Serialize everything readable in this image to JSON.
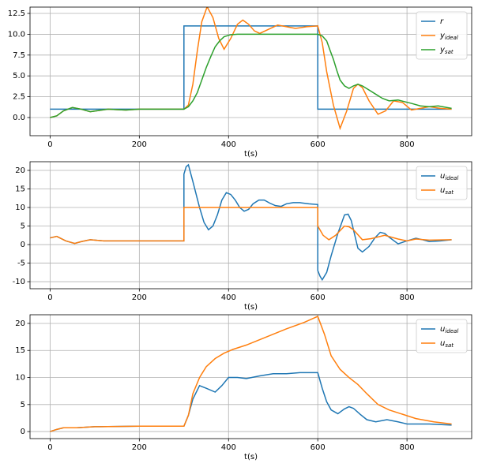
{
  "chart_data": [
    {
      "type": "line",
      "xlabel": "t(s)",
      "xlim": [
        -45,
        945
      ],
      "ylim": [
        -2.18,
        13.26
      ],
      "xticks": [
        0,
        200,
        400,
        600,
        800
      ],
      "yticks": [
        {
          "value": 0,
          "label": "0.0"
        },
        {
          "value": 2.5,
          "label": "2.5"
        },
        {
          "value": 5,
          "label": "5.0"
        },
        {
          "value": 7.5,
          "label": "7.5"
        },
        {
          "value": 10,
          "label": "10.0"
        },
        {
          "value": 12.5,
          "label": "12.5"
        }
      ],
      "grid": true,
      "legend": "upper right",
      "series": [
        {
          "name": "r",
          "color": "#1f77b4",
          "x": [
            0,
            300,
            300,
            600,
            600,
            900
          ],
          "values": [
            1,
            1,
            11,
            11,
            1,
            1
          ]
        },
        {
          "name": "y",
          "subscript": "ideal",
          "color": "#ff7f0e",
          "x": [
            0,
            15,
            30,
            50,
            70,
            90,
            110,
            130,
            150,
            170,
            200,
            250,
            300,
            310,
            320,
            330,
            340,
            352,
            365,
            378,
            390,
            405,
            420,
            432,
            445,
            458,
            470,
            490,
            510,
            530,
            550,
            575,
            600,
            610,
            620,
            635,
            650,
            665,
            680,
            690,
            700,
            715,
            735,
            752,
            770,
            790,
            810,
            830,
            850,
            875,
            900
          ],
          "values": [
            0,
            0.2,
            0.8,
            1.2,
            1.0,
            0.7,
            0.85,
            1.0,
            0.95,
            0.9,
            1.0,
            1.0,
            1.0,
            1.5,
            4,
            8,
            11.5,
            13.3,
            12,
            9.5,
            8.2,
            9.5,
            11.2,
            11.7,
            11.2,
            10.4,
            10.1,
            10.6,
            11.1,
            10.9,
            10.7,
            10.9,
            11,
            9,
            5.5,
            1.5,
            -1.3,
            0.8,
            3.5,
            4.0,
            3.6,
            2.0,
            0.4,
            0.8,
            2.0,
            1.8,
            0.9,
            1.1,
            1.3,
            1.1,
            1.0
          ]
        },
        {
          "name": "y",
          "subscript": "sat",
          "color": "#2ca02c",
          "x": [
            0,
            15,
            30,
            50,
            70,
            90,
            110,
            130,
            150,
            170,
            200,
            250,
            300,
            310,
            320,
            330,
            340,
            350,
            360,
            370,
            380,
            390,
            405,
            420,
            500,
            600,
            610,
            620,
            628,
            635,
            643,
            650,
            660,
            670,
            680,
            690,
            700,
            715,
            730,
            745,
            760,
            780,
            795,
            810,
            830,
            850,
            870,
            900
          ],
          "values": [
            0,
            0.2,
            0.8,
            1.2,
            1.0,
            0.7,
            0.85,
            1.0,
            0.95,
            0.9,
            1.0,
            1.0,
            1.0,
            1.3,
            2,
            3,
            4.5,
            6,
            7.3,
            8.5,
            9.2,
            9.7,
            9.95,
            10,
            10,
            10,
            9.8,
            9.2,
            8,
            7,
            5.6,
            4.5,
            3.8,
            3.5,
            3.8,
            4.0,
            3.8,
            3.3,
            2.8,
            2.3,
            2.0,
            2.1,
            1.9,
            1.7,
            1.4,
            1.3,
            1.4,
            1.1
          ]
        }
      ]
    },
    {
      "type": "line",
      "xlabel": "t(s)",
      "xlim": [
        -45,
        945
      ],
      "ylim": [
        -11.9,
        22.34
      ],
      "xticks": [
        0,
        200,
        400,
        600,
        800
      ],
      "yticks": [
        -10,
        -5,
        0,
        5,
        10,
        15,
        20
      ],
      "grid": true,
      "legend": "upper right",
      "series": [
        {
          "name": "u",
          "subscript": "ideal",
          "color": "#1f77b4",
          "x": [
            0,
            15,
            35,
            55,
            70,
            90,
            120,
            160,
            200,
            300,
            300,
            305,
            310,
            320,
            335,
            345,
            355,
            365,
            375,
            385,
            395,
            405,
            415,
            425,
            435,
            445,
            455,
            468,
            480,
            492,
            505,
            518,
            530,
            545,
            560,
            580,
            600,
            600,
            605,
            610,
            620,
            630,
            645,
            660,
            668,
            675,
            690,
            700,
            715,
            728,
            740,
            750,
            760,
            780,
            800,
            820,
            835,
            850,
            875,
            900
          ],
          "values": [
            1.8,
            2.2,
            1.0,
            0.3,
            0.8,
            1.3,
            1.0,
            1.0,
            1.0,
            1.0,
            19,
            21,
            21.5,
            17,
            10,
            6,
            4,
            5,
            8,
            12,
            14,
            13.5,
            12,
            10,
            9,
            9.5,
            11,
            12,
            12,
            11.2,
            10.5,
            10.3,
            11,
            11.3,
            11.3,
            11,
            10.8,
            -7,
            -8.5,
            -9.5,
            -7.5,
            -3,
            3,
            8,
            8.2,
            6.5,
            -1,
            -2,
            -0.5,
            1.8,
            3.3,
            3,
            2,
            0.2,
            1.0,
            1.7,
            1.3,
            0.8,
            1.0,
            1.3
          ]
        },
        {
          "name": "u",
          "subscript": "sat",
          "color": "#ff7f0e",
          "x": [
            0,
            15,
            35,
            55,
            70,
            90,
            120,
            160,
            200,
            300,
            300,
            600,
            600,
            612,
            625,
            640,
            660,
            670,
            680,
            700,
            720,
            750,
            780,
            800,
            820,
            850,
            900
          ],
          "values": [
            1.8,
            2.2,
            1.0,
            0.3,
            0.8,
            1.3,
            1.0,
            1.0,
            1.0,
            1.0,
            10,
            10,
            5,
            2.5,
            1.3,
            2.5,
            5,
            4.8,
            4,
            1.3,
            1.6,
            2.5,
            1.5,
            1.0,
            1.5,
            1.2,
            1.3
          ]
        }
      ]
    },
    {
      "type": "line",
      "xlabel": "t(s)",
      "xlim": [
        -45,
        945
      ],
      "ylim": [
        -1.3,
        21.6
      ],
      "xticks": [
        0,
        200,
        400,
        600,
        800
      ],
      "yticks": [
        0,
        5,
        10,
        15,
        20
      ],
      "grid": true,
      "legend": "upper right",
      "series": [
        {
          "name": "u",
          "subscript": "ideal",
          "color": "#1f77b4",
          "x": [
            0,
            15,
            30,
            60,
            100,
            200,
            300,
            310,
            320,
            335,
            350,
            370,
            385,
            400,
            420,
            440,
            470,
            500,
            530,
            560,
            600,
            610,
            620,
            630,
            645,
            660,
            670,
            680,
            695,
            710,
            730,
            755,
            780,
            800,
            850,
            900
          ],
          "values": [
            0,
            0.4,
            0.7,
            0.7,
            0.9,
            1.0,
            1.0,
            3,
            6,
            8.5,
            8,
            7.3,
            8.5,
            10,
            10,
            9.8,
            10.3,
            10.7,
            10.7,
            10.9,
            10.9,
            8,
            5.5,
            4,
            3.3,
            4.2,
            4.6,
            4.3,
            3.2,
            2.2,
            1.8,
            2.2,
            1.8,
            1.4,
            1.4,
            1.2
          ]
        },
        {
          "name": "u",
          "subscript": "sat",
          "color": "#ff7f0e",
          "x": [
            0,
            15,
            30,
            60,
            100,
            200,
            300,
            310,
            320,
            335,
            350,
            370,
            390,
            410,
            440,
            470,
            500,
            530,
            570,
            600,
            615,
            630,
            650,
            670,
            690,
            710,
            735,
            760,
            790,
            820,
            860,
            900
          ],
          "values": [
            0,
            0.4,
            0.7,
            0.7,
            0.9,
            1.0,
            1.0,
            3,
            7,
            10,
            12,
            13.5,
            14.5,
            15.2,
            16,
            17,
            18,
            19,
            20.2,
            21.3,
            18,
            14,
            11.5,
            10,
            8.7,
            7,
            5,
            4,
            3.2,
            2.4,
            1.8,
            1.4
          ]
        }
      ]
    }
  ]
}
